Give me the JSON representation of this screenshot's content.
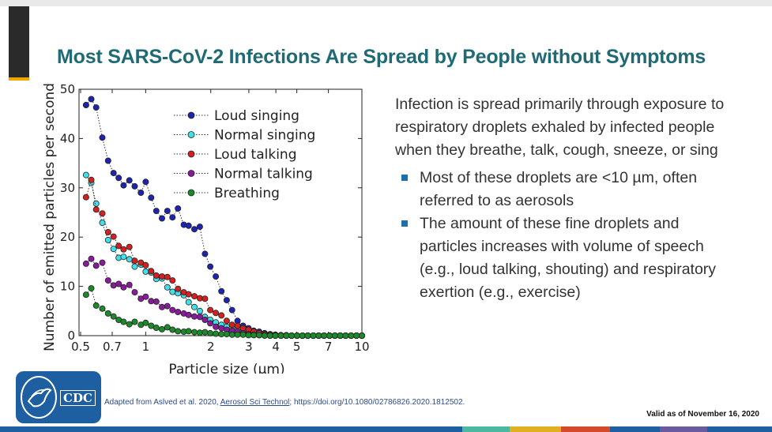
{
  "slide": {
    "title": "Most SARS-CoV-2 Infections Are Spread by People without Symptoms",
    "intro": "Infection is spread primarily through exposure to respiratory droplets exhaled by infected people when they breathe, talk, cough, sneeze, or sing",
    "bullets": [
      "Most of these droplets are <10 µm, often referred to as aerosols",
      "The amount of these fine droplets and particles increases with volume of speech (e.g., loud talking, shouting) and respiratory exertion (e.g., exercise)"
    ],
    "citation_prefix": "Adapted from Aslved et al. 2020, ",
    "citation_journal": "Aerosol Sci Technol",
    "citation_suffix": "; https://doi.org/10.1080/02786826.2020.1812502.",
    "valid": "Valid as of November 16, 2020",
    "logo_text": "CDC",
    "logo_icon": "cdc-logo-icon",
    "title_color": "#1f6a74",
    "bullet_color": "#1e6fb0",
    "footer_colors": [
      "#1d5fa0",
      "#4cb8a0",
      "#e0b020",
      "#d44a2a",
      "#1d5fa0",
      "#6a5aa0",
      "#1d5fa0"
    ]
  },
  "chart_data": {
    "type": "scatter",
    "title": "",
    "xlabel": "Particle size (µm)",
    "ylabel": "Number of emitted particles per second",
    "xscale": "log",
    "xlim": [
      0.5,
      10
    ],
    "ylim": [
      0,
      50
    ],
    "xticks": [
      0.5,
      0.7,
      1,
      2,
      3,
      4,
      5,
      7,
      10
    ],
    "xtick_labels": [
      "0.5",
      "0.7",
      "1",
      "2",
      "3",
      "4",
      "5",
      "7",
      "10"
    ],
    "yticks": [
      0,
      10,
      20,
      30,
      40,
      50
    ],
    "ytick_labels": [
      "0",
      "10",
      "20",
      "30",
      "40",
      "50"
    ],
    "grid": false,
    "legend_position": "top-right",
    "line_style": "dotted",
    "x": [
      0.53,
      0.56,
      0.59,
      0.63,
      0.67,
      0.71,
      0.75,
      0.79,
      0.84,
      0.89,
      0.95,
      1.0,
      1.06,
      1.12,
      1.19,
      1.26,
      1.33,
      1.41,
      1.5,
      1.58,
      1.68,
      1.78,
      1.88,
      1.99,
      2.11,
      2.24,
      2.37,
      2.51,
      2.66,
      2.82,
      2.99,
      3.16,
      3.35,
      3.55,
      3.76,
      3.98,
      4.22,
      4.47,
      4.73,
      5.01,
      5.31,
      5.62,
      5.96,
      6.31,
      6.68,
      7.08,
      7.5,
      7.94,
      8.41,
      8.91,
      9.44,
      10.0
    ],
    "series": [
      {
        "name": "Loud singing",
        "color": "#1c24b0",
        "values": [
          46.8,
          48.0,
          46.3,
          40.2,
          35.5,
          33.0,
          32.0,
          30.5,
          31.5,
          30.3,
          29.0,
          31.2,
          28.0,
          25.3,
          23.8,
          25.3,
          24.0,
          25.8,
          22.5,
          22.3,
          21.6,
          22.1,
          16.6,
          14.0,
          12.0,
          9.0,
          7.2,
          5.2,
          3.0,
          2.0,
          1.5,
          1.0,
          0.8,
          0.5,
          0.3,
          0.2,
          0.1,
          0.1,
          0,
          0,
          0,
          0,
          0,
          0,
          0,
          0,
          0,
          0,
          0,
          0,
          0,
          0
        ]
      },
      {
        "name": "Normal singing",
        "color": "#3fe0e8",
        "values": [
          32.6,
          31.0,
          26.8,
          22.9,
          19.4,
          17.6,
          15.8,
          16.0,
          15.5,
          14.0,
          14.4,
          13.0,
          12.8,
          11.5,
          11.6,
          9.8,
          8.9,
          8.6,
          8.2,
          6.8,
          5.8,
          5.0,
          3.8,
          3.2,
          2.7,
          2.2,
          1.8,
          1.6,
          1.2,
          0.9,
          0.6,
          0.4,
          0.3,
          0.2,
          0.1,
          0.1,
          0,
          0,
          0,
          0,
          0,
          0,
          0,
          0,
          0,
          0,
          0,
          0,
          0,
          0,
          0,
          0
        ]
      },
      {
        "name": "Loud talking",
        "color": "#d42020",
        "values": [
          28.1,
          31.6,
          25.6,
          24.8,
          21.0,
          20.1,
          18.2,
          17.5,
          18.0,
          15.2,
          14.8,
          14.3,
          13.1,
          12.2,
          12.0,
          11.9,
          11.2,
          9.5,
          8.8,
          8.4,
          8.0,
          7.6,
          7.5,
          5.2,
          4.6,
          4.1,
          3.0,
          2.2,
          2.0,
          1.5,
          1.2,
          0.8,
          0.5,
          0.3,
          0.2,
          0.1,
          0.1,
          0,
          0,
          0,
          0,
          0,
          0,
          0,
          0,
          0,
          0,
          0,
          0,
          0,
          0,
          0
        ]
      },
      {
        "name": "Normal talking",
        "color": "#8a1a9c",
        "values": [
          14.6,
          15.6,
          14.2,
          14.8,
          11.2,
          10.2,
          10.5,
          9.8,
          10.3,
          8.8,
          7.5,
          7.9,
          7.0,
          6.9,
          5.8,
          6.0,
          5.2,
          4.8,
          4.5,
          4.2,
          3.9,
          3.8,
          3.2,
          2.5,
          1.8,
          1.5,
          1.2,
          1.0,
          0.8,
          0.5,
          0.3,
          0.2,
          0.1,
          0.1,
          0,
          0,
          0,
          0,
          0,
          0,
          0,
          0,
          0,
          0,
          0,
          0,
          0,
          0,
          0,
          0,
          0,
          0
        ]
      },
      {
        "name": "Breathing",
        "color": "#1a8a2a",
        "values": [
          8.3,
          9.6,
          6.1,
          5.5,
          4.5,
          3.9,
          3.2,
          2.8,
          2.3,
          2.8,
          2.2,
          2.6,
          2.0,
          1.6,
          1.3,
          1.7,
          1.2,
          0.9,
          0.8,
          0.9,
          0.7,
          0.6,
          0.7,
          0.5,
          0.4,
          0.3,
          0.3,
          0.2,
          0.2,
          0.2,
          0.1,
          0.1,
          0.1,
          0,
          0,
          0,
          0,
          0,
          0,
          0,
          0,
          0,
          0,
          0,
          0,
          0,
          0,
          0,
          0,
          0,
          0,
          0
        ]
      }
    ]
  }
}
